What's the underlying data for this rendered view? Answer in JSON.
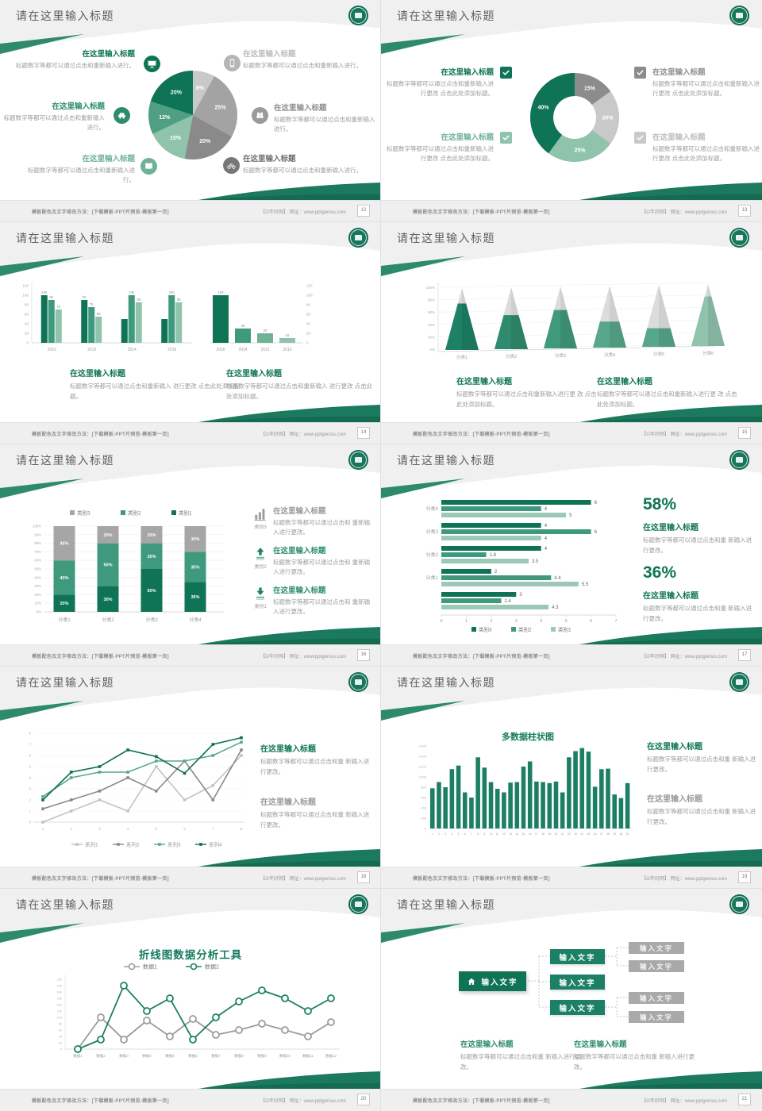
{
  "chrome": {
    "title": "请在这里输入标题",
    "footer_left": "模板配色及文字修改方法：[下载模板-PPT片预览-模板第一页]",
    "footer_right": "【O年好网】 网址：www.pptgenius.com"
  },
  "pages": [
    "12",
    "13",
    "14",
    "15",
    "16",
    "17",
    "18",
    "19",
    "20",
    "21"
  ],
  "strings": {
    "node_text": "输入文字",
    "bar_title": "多数据柱状图",
    "line_title": "折线图数据分析工具"
  },
  "slides": [
    {
      "callouts_left": [
        {
          "title": "在这里输入标题",
          "body": "标题数字等都可以通过点击和重新输入进行。"
        },
        {
          "title": "在这里输入标题",
          "body": "标题数字等都可以通过点击和重新输入进行。"
        },
        {
          "title": "在这里输入标题",
          "body": "标题数字等都可以通过点击和重新输入进行。"
        }
      ],
      "callouts_right": [
        {
          "title": "在这里输入标题",
          "body": "标题数字等都可以通过点击和重新输入进行。"
        },
        {
          "title": "在这里输入标题",
          "body": "标题数字等都可以通过点击和重新输入进行。"
        },
        {
          "title": "在这里输入标题",
          "body": "标题数字等都可以通过点击和重新输入进行。"
        }
      ]
    },
    {
      "items": [
        {
          "title": "在这里输入标题",
          "body": "标题数字等都可以通过点击和重新输入进行更改 点击此处添加标题。"
        },
        {
          "title": "在这里输入标题",
          "body": "标题数字等都可以通过点击和重新输入进行更改 点击此处添加标题。"
        },
        {
          "title": "在这里输入标题",
          "body": "标题数字等都可以通过点击和重新输入进行更改 点击此处添加标题。"
        },
        {
          "title": "在这里输入标题",
          "body": "标题数字等都可以通过点击和重新输入进行更改 点击此处添加标题。"
        }
      ]
    },
    {
      "blocks": [
        {
          "title": "在这里输入标题",
          "body": "标题数字等都可以通过点击和重新输入 进行更改 点击此处添加标题。"
        },
        {
          "title": "在这里输入标题",
          "body": "标题数字等都可以通过点击和重新输入 进行更改 点击此处添加标题。"
        }
      ]
    },
    {
      "blocks": [
        {
          "title": "在这里输入标题",
          "body": "标题数字等都可以通过点击和重新输入进行更 改 点击此处添加标题。"
        },
        {
          "title": "在这里输入标题",
          "body": "标题数字等都可以通过点击和重新输入进行更 改 点击此处添加标题。"
        }
      ]
    },
    {
      "items": [
        {
          "label": "类别3",
          "title": "在这里输入标题",
          "body": "标题数字等都可以通过点击和 重新输入进行更改。"
        },
        {
          "label": "类别2",
          "title": "在这里输入标题",
          "body": "标题数字等都可以通过点击和 重新输入进行更改。"
        },
        {
          "label": "类别1",
          "title": "在这里输入标题",
          "body": "标题数字等都可以通过点击和 重新输入进行更改。"
        }
      ]
    },
    {
      "stats": [
        {
          "value": "58%",
          "title": "在这里输入标题",
          "body": "标题数字等都可以通过点击和重 新输入进行更改。"
        },
        {
          "value": "36%",
          "title": "在这里输入标题",
          "body": "标题数字等都可以通过点击和重 新输入进行更改。"
        }
      ]
    },
    {
      "blocks": [
        {
          "title": "在这里输入标题",
          "body": "标题数字等都可以通过点击和重 新输入进行更改。"
        },
        {
          "title": "在这里输入标题",
          "body": "标题数字等都可以通过点击和重 新输入进行更改。"
        }
      ]
    },
    {
      "blocks": [
        {
          "title": "在这里输入标题",
          "body": "标题数字等都可以通过点击和重 新输入进行更改。"
        },
        {
          "title": "在这里输入标题",
          "body": "标题数字等都可以通过点击和重 新输入进行更改。"
        }
      ]
    },
    {},
    {
      "blocks": [
        {
          "title": "在这里输入标题",
          "body": "标题数字等都可以通过点击和重 新输入进行更改。"
        },
        {
          "title": "在这里输入标题",
          "body": "标题数字等都可以通过点击和重 新输入进行更改。"
        }
      ]
    }
  ],
  "chart_data": [
    {
      "type": "pie",
      "values": [
        8,
        25,
        20,
        15,
        12,
        20
      ],
      "labels": [
        "8%",
        "25%",
        "20%",
        "15%",
        "12%",
        "20%"
      ],
      "colors": [
        "#c9c9c9",
        "#a3a3a3",
        "#8a8a8a",
        "#8fc3ac",
        "#4f9f82",
        "#0f7456"
      ]
    },
    {
      "type": "pie",
      "subtype": "donut",
      "values": [
        15,
        20,
        25,
        40
      ],
      "labels": [
        "15%",
        "20%",
        "25%",
        "40%"
      ],
      "colors": [
        "#8c8c8c",
        "#c9c9c9",
        "#8fc3ac",
        "#0f7456"
      ]
    },
    {
      "type": "bar",
      "categories": [
        "2010",
        "2012",
        "2014",
        "2016"
      ],
      "ylim": [
        0,
        120
      ],
      "yticks": [
        0,
        20,
        40,
        60,
        80,
        100,
        120
      ],
      "series": [
        {
          "name": "series1",
          "color": "#0f7456",
          "values": [
            100,
            90,
            50,
            50
          ],
          "labels": [
            "100",
            "90",
            "",
            ""
          ]
        },
        {
          "name": "series2",
          "color": "#3f9a7d",
          "values": [
            90,
            75,
            100,
            100
          ],
          "labels": [
            "90",
            "75",
            "100",
            "100"
          ]
        },
        {
          "name": "series3",
          "color": "#8fc3ac",
          "values": [
            70,
            55,
            85,
            85
          ],
          "labels": [
            "70",
            "55",
            "85",
            "85"
          ]
        }
      ]
    },
    {
      "type": "bar",
      "categories": [
        "2016",
        "2014",
        "2012",
        "2010"
      ],
      "ylim": [
        0,
        120
      ],
      "yticks": [
        120,
        100,
        80,
        60,
        40,
        20,
        0
      ],
      "values": [
        100,
        30,
        20,
        10
      ],
      "labels": [
        "100",
        "30",
        "20",
        "10"
      ],
      "colors": [
        "#0f7456",
        "#3f9a7d",
        "#6fb296",
        "#8fc3ac"
      ]
    },
    {
      "type": "bar",
      "subtype": "pyramid",
      "categories": [
        "分类1",
        "分类2",
        "分类3",
        "分类4",
        "分类5",
        "分类6"
      ],
      "fractions": [
        0.75,
        0.55,
        0.62,
        0.42,
        0.3,
        0.8
      ],
      "colors": [
        "#1d8165",
        "#2f8b6d",
        "#3f9a7d",
        "#57a78a",
        "#57a78a",
        "#8fc3ac"
      ],
      "yticks": [
        "0%",
        "20%",
        "40%",
        "60%",
        "80%",
        "100%"
      ]
    },
    {
      "type": "bar",
      "subtype": "stacked-100",
      "categories": [
        "分类1",
        "分类2",
        "分类3",
        "分类4"
      ],
      "yticks": [
        "0%",
        "10%",
        "20%",
        "30%",
        "40%",
        "50%",
        "60%",
        "70%",
        "80%",
        "90%",
        "100%"
      ],
      "legend": [
        {
          "label": "类别3",
          "color": "#a6a6a6"
        },
        {
          "label": "类别2",
          "color": "#3f9a7d"
        },
        {
          "label": "类别1",
          "color": "#0f7456"
        }
      ],
      "series": [
        {
          "name": "类别1",
          "color": "#0f7456",
          "values": [
            20,
            30,
            50,
            35
          ],
          "labels": [
            "20%",
            "30%",
            "50%",
            "35%"
          ]
        },
        {
          "name": "类别2",
          "color": "#3f9a7d",
          "values": [
            40,
            50,
            30,
            35
          ],
          "labels": [
            "40%",
            "50%",
            "30%",
            "35%"
          ]
        },
        {
          "name": "类别3",
          "color": "#a6a6a6",
          "values": [
            40,
            20,
            20,
            30
          ],
          "labels": [
            "40%",
            "20%",
            "20%",
            "30%"
          ]
        }
      ]
    },
    {
      "type": "bar",
      "subtype": "horizontal",
      "xticks": [
        0,
        1,
        2,
        3,
        4,
        5,
        6,
        7
      ],
      "colors": [
        "#0f7456",
        "#3f9a7d",
        "#9cc9b6"
      ],
      "legend": [
        {
          "label": "类别3",
          "color": "#0f7456"
        },
        {
          "label": "类别2",
          "color": "#3f9a7d"
        },
        {
          "label": "类别1",
          "color": "#9cc9b6"
        }
      ],
      "groups": [
        {
          "label": "分类4",
          "values": [
            6,
            4,
            5
          ]
        },
        {
          "label": "分类3",
          "values": [
            4,
            6,
            4
          ]
        },
        {
          "label": "分类2",
          "values": [
            4,
            1.8,
            3.5
          ]
        },
        {
          "label": "分类1",
          "values": [
            2,
            4.4,
            5.5
          ]
        },
        {
          "label": "",
          "values": [
            3,
            2.4,
            4.3
          ]
        }
      ]
    },
    {
      "type": "line",
      "x": [
        1,
        2,
        3,
        4,
        5,
        6,
        7,
        8
      ],
      "yticks": [
        0,
        1,
        2,
        3,
        4,
        5,
        6,
        7,
        8
      ],
      "series": [
        {
          "name": "系列1",
          "color": "#c3c3c3",
          "values": [
            0,
            1,
            2,
            1,
            5,
            2,
            3.3,
            6
          ]
        },
        {
          "name": "系列2",
          "color": "#8a8a8a",
          "values": [
            1.2,
            2,
            2.8,
            4,
            2.8,
            5.5,
            2,
            6.5
          ]
        },
        {
          "name": "系列3",
          "color": "#57a78a",
          "values": [
            2.3,
            4,
            4.5,
            4.5,
            5.5,
            5.5,
            6,
            7.2
          ]
        },
        {
          "name": "系列4",
          "color": "#0f6e52",
          "values": [
            2,
            4.5,
            5,
            6.5,
            5.9,
            4.4,
            7,
            7.6
          ]
        }
      ]
    },
    {
      "type": "bar",
      "title": "多数据柱状图",
      "color": "#1c7f63",
      "ylim": [
        0,
        1600
      ],
      "yticks": [
        "0",
        "200",
        "400",
        "600",
        "800",
        "1,000",
        "1,200",
        "1,400",
        "1,600"
      ],
      "xlabels": [
        "1",
        "2",
        "3",
        "4",
        "5",
        "6",
        "7",
        "8",
        "9",
        "10",
        "11",
        "12",
        "13",
        "14",
        "15",
        "16",
        "17",
        "18",
        "19",
        "20",
        "21",
        "22",
        "23",
        "24",
        "25",
        "26",
        "27",
        "28",
        "29",
        "30",
        "31"
      ],
      "values": [
        780,
        900,
        800,
        1150,
        1220,
        700,
        600,
        1380,
        1180,
        900,
        770,
        700,
        890,
        900,
        1200,
        1300,
        910,
        900,
        880,
        910,
        700,
        1380,
        1500,
        1560,
        1490,
        810,
        1150,
        1160,
        660,
        590,
        880
      ]
    },
    {
      "type": "line",
      "title": "折线图数据分析工具",
      "categories": [
        "数据1",
        "数据2",
        "数据3",
        "数据4",
        "数据5",
        "数据6",
        "数据7",
        "数据8",
        "数据9",
        "数据10",
        "数据11",
        "数据12"
      ],
      "ylim": [
        0,
        220
      ],
      "yticks": [
        0,
        20,
        40,
        60,
        80,
        100,
        120,
        140,
        160,
        180,
        200,
        220
      ],
      "series": [
        {
          "name": "数据1",
          "color": "#9b9b9b",
          "values": [
            0,
            100,
            30,
            90,
            40,
            95,
            45,
            60,
            80,
            60,
            40,
            85
          ]
        },
        {
          "name": "数据2",
          "color": "#1c8066",
          "values": [
            0,
            30,
            200,
            120,
            160,
            30,
            100,
            150,
            185,
            160,
            120,
            160
          ]
        }
      ]
    }
  ]
}
